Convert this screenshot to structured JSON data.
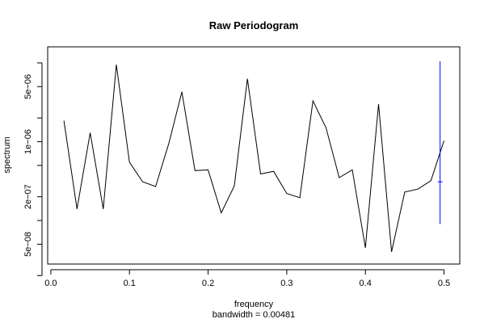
{
  "chart_data": {
    "type": "line",
    "title": "Raw Periodogram",
    "xlabel": "frequency",
    "ylabel": "spectrum",
    "subtitle": "bandwidth = 0.00481",
    "y_scale": "log",
    "xlim": [
      -0.004,
      0.52
    ],
    "ylim": [
      2.8e-08,
      1.6e-05
    ],
    "x_ticks": [
      0.0,
      0.1,
      0.2,
      0.3,
      0.4,
      0.5
    ],
    "x_tick_labels": [
      "0.0",
      "0.1",
      "0.2",
      "0.3",
      "0.4",
      "0.5"
    ],
    "y_ticks": [
      5e-08,
      2e-07,
      1e-06,
      5e-06
    ],
    "y_tick_labels": [
      "5e−08",
      "2e−07",
      "1e−06",
      "5e−06"
    ],
    "y_minor_ticks": [
      2e-08,
      1e-07,
      5e-07,
      2e-06,
      1e-05
    ],
    "x": [
      0.0167,
      0.0333,
      0.05,
      0.0667,
      0.0833,
      0.1,
      0.1167,
      0.1333,
      0.15,
      0.1667,
      0.1833,
      0.2,
      0.2167,
      0.2333,
      0.25,
      0.2667,
      0.2833,
      0.3,
      0.3167,
      0.3333,
      0.35,
      0.3667,
      0.3833,
      0.4,
      0.4167,
      0.4333,
      0.45,
      0.4667,
      0.4833,
      0.5
    ],
    "y": [
      1.85e-06,
      1.4e-07,
      1.3e-06,
      1.4e-07,
      9.5e-06,
      5.5e-07,
      3.1e-07,
      2.7e-07,
      9.5e-07,
      4.3e-06,
      4.3e-07,
      4.4e-07,
      1.25e-07,
      2.75e-07,
      6.3e-06,
      3.9e-07,
      4.2e-07,
      2.2e-07,
      1.95e-07,
      3.3e-06,
      1.5e-06,
      3.5e-07,
      4.4e-07,
      4.5e-08,
      3e-06,
      4e-08,
      2.3e-07,
      2.5e-07,
      3.2e-07,
      1.03e-06
    ],
    "line_color": "#000000",
    "ci_bar": {
      "x": 0.495,
      "lower": 9e-08,
      "upper": 1.05e-05,
      "center": 3.1e-07,
      "color": "#0000ff"
    }
  }
}
